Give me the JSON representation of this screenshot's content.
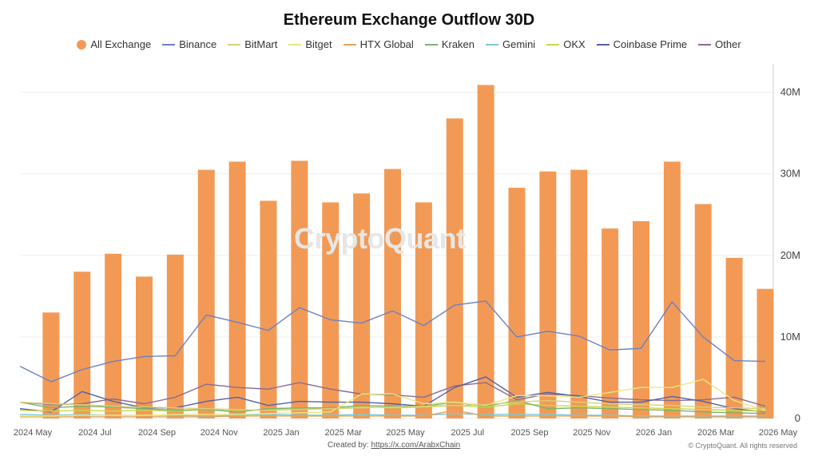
{
  "chart_data": {
    "type": "bar",
    "title": "Ethereum Exchange Outflow 30D",
    "x_tick_labels": [
      "2024 May",
      "2024 Jul",
      "2024 Sep",
      "2024 Nov",
      "2025 Jan",
      "2025 Mar",
      "2025 May",
      "2025 Jul",
      "2025 Sep",
      "2025 Nov",
      "2026 Jan",
      "2026 Mar",
      "2026 May"
    ],
    "y_tick_labels": [
      "0",
      "10M",
      "20M",
      "30M",
      "40M"
    ],
    "ylim": [
      0,
      43000000
    ],
    "y_axis_position": "right",
    "grid": true,
    "legend_position": "top",
    "series": [
      {
        "name": "All Exchange",
        "type": "bar",
        "color": "#f29a55",
        "values": [
          null,
          13000000,
          18000000,
          20200000,
          17400000,
          20100000,
          30500000,
          31500000,
          26700000,
          31600000,
          26500000,
          27600000,
          30600000,
          26500000,
          36800000,
          40900000,
          28300000,
          30300000,
          30500000,
          23300000,
          24200000,
          31500000,
          26300000,
          19700000,
          15900000
        ]
      },
      {
        "name": "Binance",
        "type": "line",
        "color": "#6d7fc3",
        "values": [
          6400000,
          4500000,
          6000000,
          7000000,
          7600000,
          7700000,
          12700000,
          11800000,
          10800000,
          13600000,
          12100000,
          11700000,
          13200000,
          11400000,
          13900000,
          14400000,
          10000000,
          10700000,
          10100000,
          8400000,
          8600000,
          14300000,
          10000000,
          7100000,
          7000000
        ]
      },
      {
        "name": "BitMart",
        "type": "line",
        "color": "#d9cf7a",
        "values": [
          2000000,
          1800000,
          1700000,
          1500000,
          1400000,
          1300000,
          1200000,
          1100000,
          1000000,
          1100000,
          1200000,
          1300000,
          1400000,
          1500000,
          1600000,
          1700000,
          2000000,
          2200000,
          2000000,
          1800000,
          1700000,
          1600000,
          1400000,
          1300000,
          1200000
        ]
      },
      {
        "name": "Bitget",
        "type": "line",
        "color": "#ece87e",
        "values": [
          300000,
          300000,
          400000,
          400000,
          400000,
          500000,
          500000,
          500000,
          600000,
          700000,
          800000,
          3000000,
          3000000,
          1800000,
          2000000,
          1600000,
          2800000,
          2800000,
          2600000,
          3200000,
          3800000,
          3800000,
          4800000,
          2200000,
          1000000
        ]
      },
      {
        "name": "HTX Global",
        "type": "line",
        "color": "#e2a35a",
        "values": [
          200000,
          200000,
          200000,
          200000,
          200000,
          200000,
          200000,
          300000,
          300000,
          300000,
          300000,
          300000,
          300000,
          300000,
          1000000,
          300000,
          300000,
          300000,
          300000,
          300000,
          200000,
          200000,
          200000,
          200000,
          200000
        ]
      },
      {
        "name": "Kraken",
        "type": "line",
        "color": "#7cb36a",
        "values": [
          2000000,
          1300000,
          1500000,
          1400000,
          1200000,
          1000000,
          1100000,
          800000,
          1200000,
          1300000,
          1300000,
          1600000,
          1500000,
          1500000,
          2000000,
          1500000,
          2200000,
          1200000,
          1300000,
          1200000,
          1100000,
          1000000,
          800000,
          700000,
          600000
        ]
      },
      {
        "name": "Gemini",
        "type": "line",
        "color": "#7cc9d8",
        "values": [
          500000,
          400000,
          500000,
          400000,
          400000,
          400000,
          300000,
          400000,
          500000,
          400000,
          400000,
          500000,
          400000,
          400000,
          600000,
          500000,
          500000,
          500000,
          400000,
          400000,
          300000,
          300000,
          300000,
          300000,
          300000
        ]
      },
      {
        "name": "OKX",
        "type": "line",
        "color": "#c9d84c",
        "values": [
          1000000,
          900000,
          1000000,
          900000,
          1000000,
          900000,
          1100000,
          900000,
          1100000,
          1300000,
          1200000,
          1400000,
          1300000,
          1400000,
          1600000,
          1400000,
          1800000,
          1600000,
          1500000,
          1400000,
          1300000,
          1200000,
          1100000,
          1000000,
          900000
        ]
      },
      {
        "name": "Coinbase Prime",
        "type": "line",
        "color": "#5560a8",
        "values": [
          1200000,
          800000,
          3300000,
          2100000,
          1300000,
          1300000,
          2100000,
          2600000,
          1600000,
          2100000,
          2000000,
          2000000,
          1800000,
          1500000,
          3800000,
          5100000,
          2600000,
          3200000,
          2700000,
          2000000,
          2000000,
          2700000,
          2100000,
          1200000,
          800000
        ]
      },
      {
        "name": "Other",
        "type": "line",
        "color": "#8a6d8f",
        "values": [
          2000000,
          1700000,
          1800000,
          2400000,
          1800000,
          2600000,
          4200000,
          3800000,
          3600000,
          4400000,
          3600000,
          3000000,
          2900000,
          2600000,
          4000000,
          4400000,
          2300000,
          3000000,
          2800000,
          2500000,
          2300000,
          2200000,
          2300000,
          2600000,
          1500000
        ]
      }
    ]
  },
  "footer": {
    "created_by_label": "Created by:",
    "created_by_link": "https://x.com/ArabxChain",
    "copyright": "© CryptoQuant. All rights reserved"
  },
  "watermark": "CryptoQuant"
}
